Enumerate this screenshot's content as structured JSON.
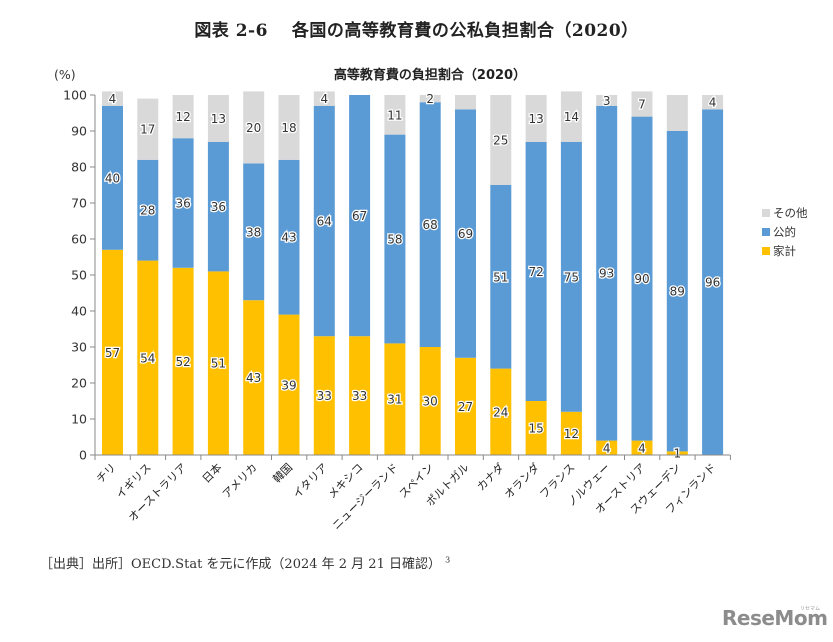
{
  "figure_title": "図表 2-6　 各国の高等教育費の公私負担割合（2020）",
  "source_note": "［出典］出所］OECD.Stat を元に作成（2024 年 2 月 21 日確認）",
  "source_footnote": "3",
  "logo": {
    "text": "ReseMom",
    "sub": "リセマム"
  },
  "chart_data": {
    "type": "bar",
    "stacked": true,
    "title": "高等教育費の負担割合（2020）",
    "xlabel": "",
    "ylabel": "(%)",
    "ylim": [
      0,
      100
    ],
    "yticks": [
      0,
      10,
      20,
      30,
      40,
      50,
      60,
      70,
      80,
      90,
      100
    ],
    "grid": false,
    "legend_position": "right",
    "categories": [
      "チリ",
      "イギリス",
      "オーストラリア",
      "日本",
      "アメリカ",
      "韓国",
      "イタリア",
      "メキシコ",
      "ニュージーランド",
      "スペイン",
      "ポルトガル",
      "カナダ",
      "オランダ",
      "フランス",
      "ノルウェー",
      "オーストリア",
      "スウェーデン",
      "フィンランド"
    ],
    "series": [
      {
        "name": "家計",
        "color": "#FFC000",
        "values": [
          57,
          54,
          52,
          51,
          43,
          39,
          33,
          33,
          31,
          30,
          27,
          24,
          15,
          12,
          4,
          4,
          1,
          0
        ],
        "labels": [
          "57",
          "54",
          "52",
          "51",
          "43",
          "39",
          "33",
          "33",
          "31",
          "30",
          "27",
          "24",
          "15",
          "12",
          "4",
          "4",
          "1",
          ""
        ]
      },
      {
        "name": "公的",
        "color": "#5B9BD5",
        "values": [
          40,
          28,
          36,
          36,
          38,
          43,
          64,
          67,
          58,
          68,
          69,
          51,
          72,
          75,
          93,
          90,
          89,
          96
        ],
        "labels": [
          "40",
          "28",
          "36",
          "36",
          "38",
          "43",
          "64",
          "67",
          "58",
          "68",
          "69",
          "51",
          "72",
          "75",
          "93",
          "90",
          "89",
          "96"
        ]
      },
      {
        "name": "その他",
        "color": "#D9D9D9",
        "values": [
          4,
          17,
          12,
          13,
          20,
          18,
          4,
          0,
          11,
          2,
          4,
          25,
          13,
          14,
          3,
          7,
          10,
          4
        ],
        "labels": [
          "4",
          "17",
          "12",
          "13",
          "20",
          "18",
          "4",
          "",
          "11",
          "2",
          "",
          "25",
          "13",
          "14",
          "3",
          "7",
          "",
          "4"
        ]
      }
    ],
    "legend_order": [
      "その他",
      "公的",
      "家計"
    ]
  }
}
